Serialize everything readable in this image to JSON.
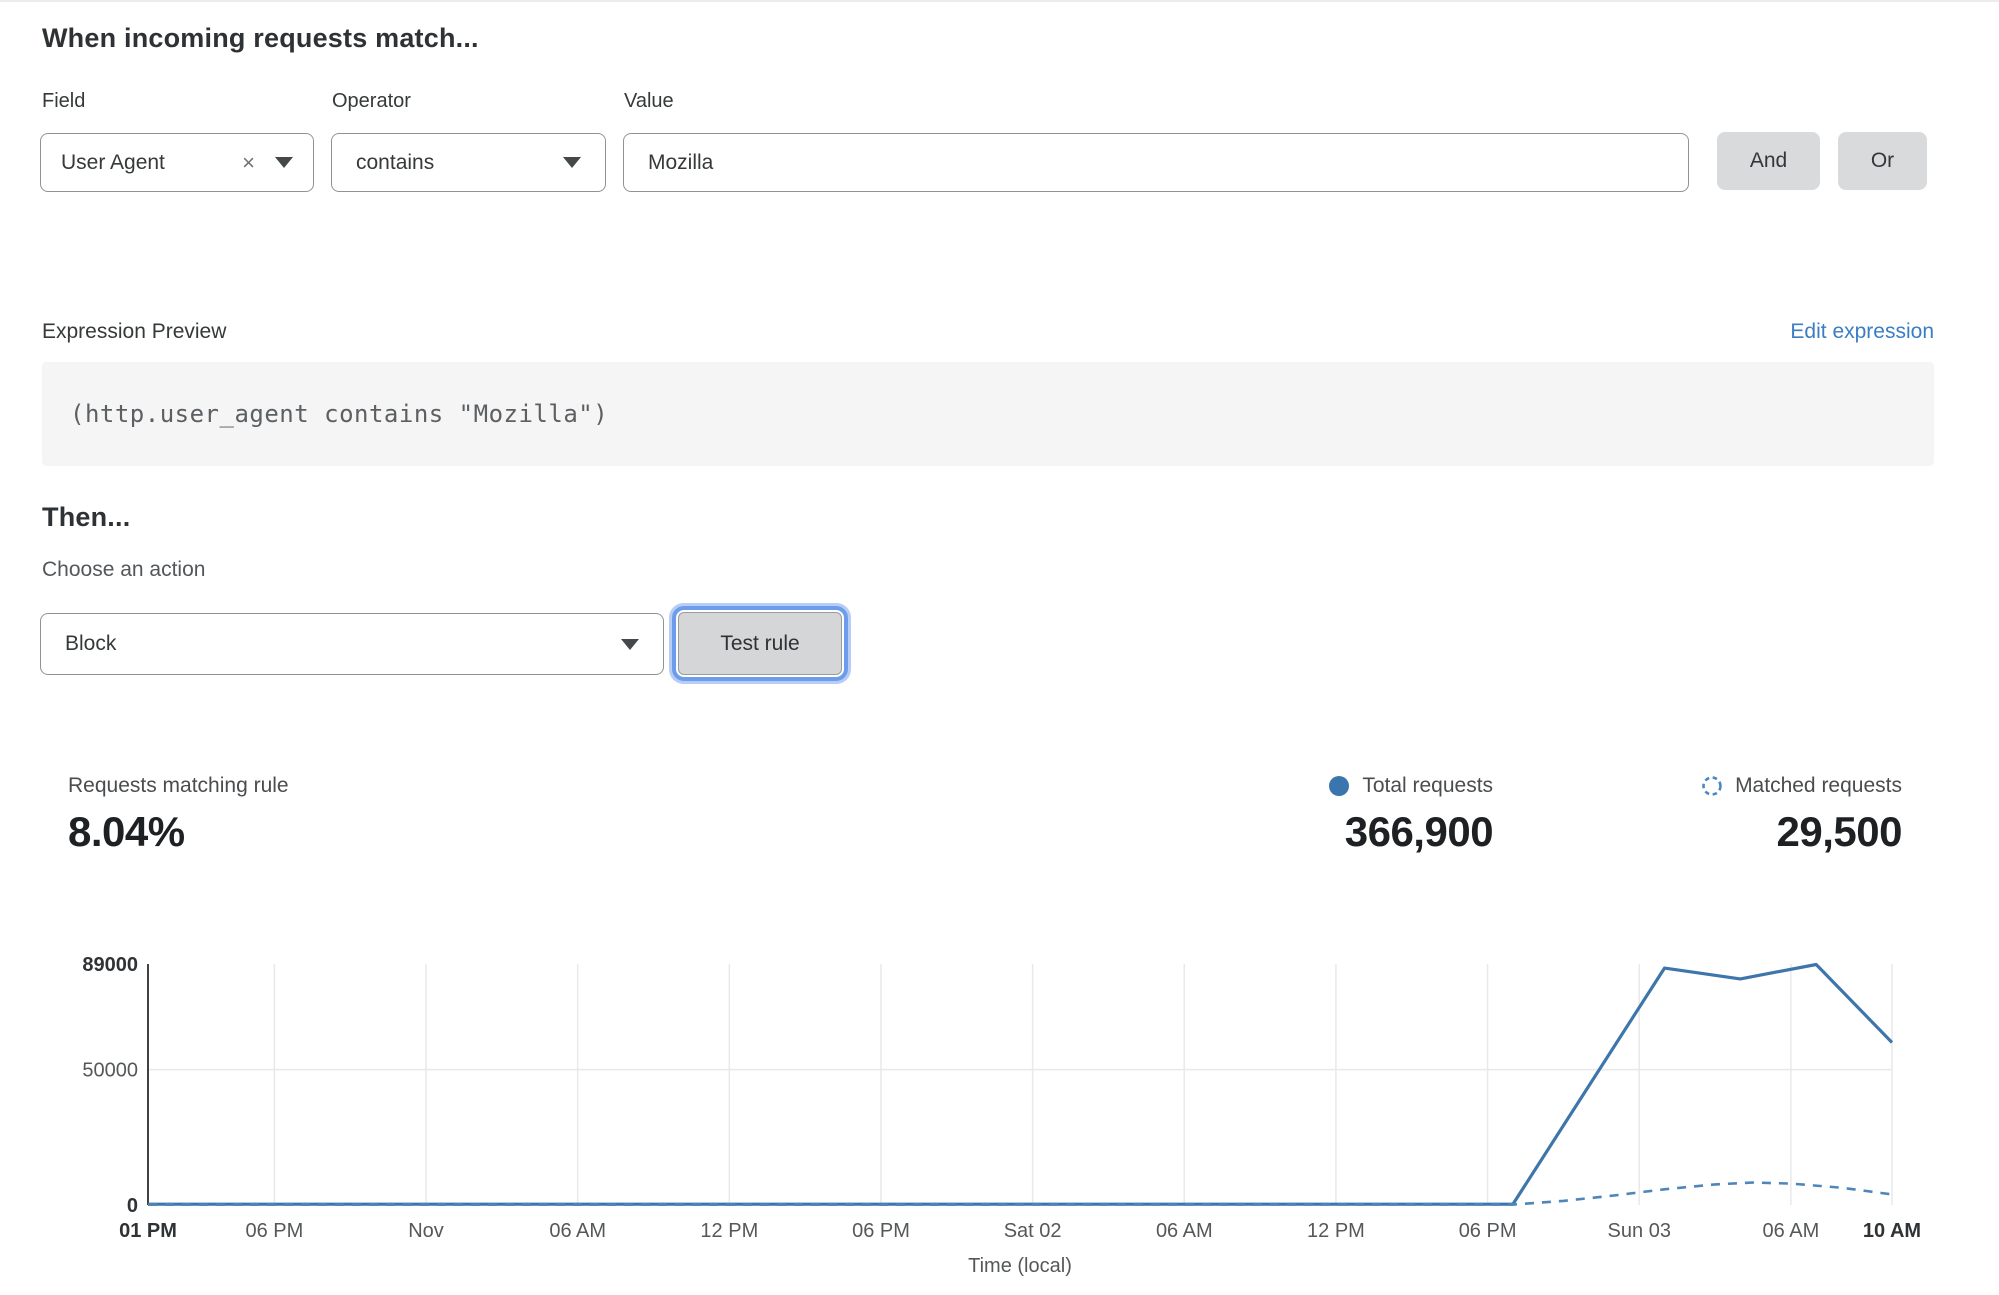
{
  "match_builder": {
    "heading": "When incoming requests match...",
    "field": {
      "label": "Field",
      "value": "User Agent",
      "clear_icon": "×"
    },
    "operator": {
      "label": "Operator",
      "value": "contains"
    },
    "value": {
      "label": "Value",
      "value": "Mozilla"
    },
    "and_label": "And",
    "or_label": "Or"
  },
  "expression": {
    "label": "Expression Preview",
    "edit_link": "Edit expression",
    "code": "(http.user_agent contains \"Mozilla\")"
  },
  "action": {
    "heading": "Then...",
    "choose_label": "Choose an action",
    "selected": "Block",
    "test_button": "Test rule"
  },
  "stats": {
    "matching": {
      "label": "Requests matching rule",
      "value": "8.04%"
    },
    "total": {
      "label": "Total requests",
      "value": "366,900"
    },
    "matched": {
      "label": "Matched requests",
      "value": "29,500"
    }
  },
  "colors": {
    "line_solid": "#3e76ab",
    "line_dashed": "#4e86ba",
    "legend_dot": "#3a75ad",
    "legend_dashed_circle": "#4c88c0",
    "grid": "#e8e9ea",
    "axis": "#3f4244",
    "link_blue": "#3b7dc4",
    "button_gray": "#d8dadb",
    "focus_ring": "#6d9cec"
  },
  "chart_data": {
    "type": "line",
    "title": "",
    "xlabel": "Time (local)",
    "ylabel": "",
    "ylim": [
      0,
      89000
    ],
    "grid": true,
    "legend_position": "above-right (stats row)",
    "yticks": [
      {
        "value": 0,
        "label": "0",
        "bold": true
      },
      {
        "value": 50000,
        "label": "50000",
        "bold": false
      },
      {
        "value": 89000,
        "label": "89000",
        "bold": true
      }
    ],
    "x_axis_hours_span": 69,
    "xticks": [
      {
        "h": 0,
        "label": "01 PM",
        "bold": true
      },
      {
        "h": 5,
        "label": "06 PM",
        "bold": false
      },
      {
        "h": 11,
        "label": "Nov",
        "bold": false
      },
      {
        "h": 17,
        "label": "06 AM",
        "bold": false
      },
      {
        "h": 23,
        "label": "12 PM",
        "bold": false
      },
      {
        "h": 29,
        "label": "06 PM",
        "bold": false
      },
      {
        "h": 35,
        "label": "Sat 02",
        "bold": false
      },
      {
        "h": 41,
        "label": "06 AM",
        "bold": false
      },
      {
        "h": 47,
        "label": "12 PM",
        "bold": false
      },
      {
        "h": 53,
        "label": "06 PM",
        "bold": false
      },
      {
        "h": 59,
        "label": "Sun 03",
        "bold": false
      },
      {
        "h": 65,
        "label": "06 AM",
        "bold": false
      },
      {
        "h": 69,
        "label": "10 AM",
        "bold": true
      }
    ],
    "series": [
      {
        "name": "Total requests",
        "style": "solid",
        "points": [
          [
            0,
            300
          ],
          [
            54,
            300
          ],
          [
            60,
            87500
          ],
          [
            63,
            83500
          ],
          [
            66,
            88800
          ],
          [
            69,
            60000
          ]
        ]
      },
      {
        "name": "Matched requests",
        "style": "dashed",
        "points": [
          [
            0,
            120
          ],
          [
            54,
            150
          ],
          [
            56,
            1500
          ],
          [
            58,
            3500
          ],
          [
            60,
            5800
          ],
          [
            62,
            7600
          ],
          [
            63.5,
            8300
          ],
          [
            65,
            7900
          ],
          [
            67,
            6400
          ],
          [
            69,
            3900
          ]
        ]
      }
    ]
  }
}
